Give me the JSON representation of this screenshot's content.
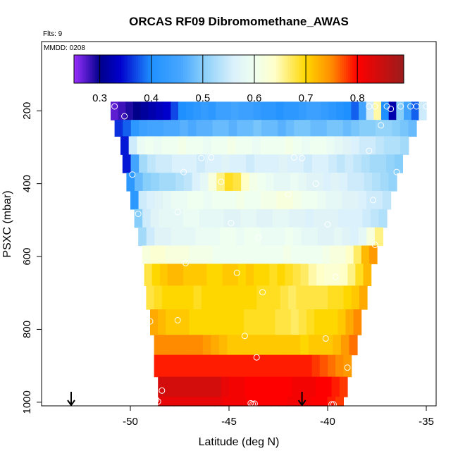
{
  "chart_data": {
    "type": "heatmap",
    "title": "ORCAS RF09 Dibromomethane_AWAS",
    "flights_note": "Flts: 9",
    "date_note": "MMDD: 0208",
    "xlabel": "Latitude (deg N)",
    "ylabel": "PSXC (mbar)",
    "xlim": [
      -54.5,
      -34.5
    ],
    "ylim": [
      1010,
      10
    ],
    "y_reversed": true,
    "x_ticks": [
      -50,
      -45,
      -40,
      -35
    ],
    "x_tick_labels": [
      "-50",
      "-45",
      "-40",
      "-35"
    ],
    "y_ticks": [
      200,
      400,
      600,
      800,
      1000
    ],
    "y_tick_labels": [
      "200",
      "400",
      "600",
      "800",
      "1000"
    ],
    "colorbar": {
      "range": [
        0.25,
        0.89
      ],
      "ticks": [
        0.3,
        0.4,
        0.5,
        0.6,
        0.7,
        0.8
      ],
      "tick_labels": [
        "0.3",
        "0.4",
        "0.5",
        "0.6",
        "0.7",
        "0.8"
      ],
      "stops": [
        [
          0.25,
          "#9b30ff"
        ],
        [
          0.3,
          "#00008b"
        ],
        [
          0.34,
          "#0000cd"
        ],
        [
          0.4,
          "#1e90ff"
        ],
        [
          0.46,
          "#4aa8ff"
        ],
        [
          0.5,
          "#87cefa"
        ],
        [
          0.56,
          "#dbf1fb"
        ],
        [
          0.6,
          "#effff0"
        ],
        [
          0.64,
          "#ffffc8"
        ],
        [
          0.7,
          "#ffd700"
        ],
        [
          0.75,
          "#ff8c00"
        ],
        [
          0.8,
          "#ff0000"
        ],
        [
          0.89,
          "#9b1c1c"
        ]
      ]
    },
    "grid": false,
    "legend": "none",
    "bands": [
      {
        "p0": 175,
        "p1": 225,
        "lat0": -51.0,
        "lat1": -35.0,
        "values": [
          0.27,
          0.28,
          0.29,
          0.3,
          0.31,
          0.32,
          0.33,
          0.34,
          0.37,
          0.4,
          0.41,
          0.42,
          0.43,
          0.42,
          0.44,
          0.44,
          0.45,
          0.44,
          0.44,
          0.43,
          0.42,
          0.42,
          0.41,
          0.42,
          0.42,
          0.43,
          0.44,
          0.44,
          0.43,
          0.42,
          0.41,
          0.4,
          0.38,
          0.45,
          0.55,
          0.65,
          0.4,
          0.32,
          0.5,
          0.45,
          0.38,
          0.55
        ]
      },
      {
        "p0": 225,
        "p1": 270,
        "lat0": -50.8,
        "lat1": -35.5,
        "values": [
          0.36,
          0.38,
          0.42,
          0.44,
          0.45,
          0.45,
          0.46,
          0.46,
          0.47,
          0.46,
          0.47,
          0.47,
          0.48,
          0.48,
          0.47,
          0.48,
          0.48,
          0.49,
          0.48,
          0.48,
          0.47,
          0.48,
          0.49,
          0.49,
          0.48,
          0.48,
          0.49,
          0.49,
          0.48,
          0.49,
          0.5,
          0.5,
          0.51,
          0.51,
          0.5,
          0.49,
          0.48
        ]
      },
      {
        "p0": 270,
        "p1": 320,
        "lat0": -50.5,
        "lat1": -35.9,
        "values": [
          0.35,
          0.55,
          0.59,
          0.6,
          0.59,
          0.6,
          0.6,
          0.61,
          0.6,
          0.6,
          0.59,
          0.6,
          0.6,
          0.61,
          0.6,
          0.6,
          0.59,
          0.6,
          0.6,
          0.6,
          0.61,
          0.6,
          0.59,
          0.6,
          0.6,
          0.59,
          0.58,
          0.57,
          0.56,
          0.55,
          0.55,
          0.54,
          0.53,
          0.53,
          0.52
        ]
      },
      {
        "p0": 320,
        "p1": 370,
        "lat0": -50.4,
        "lat1": -36.2,
        "values": [
          0.35,
          0.45,
          0.52,
          0.54,
          0.55,
          0.55,
          0.56,
          0.56,
          0.56,
          0.55,
          0.56,
          0.56,
          0.57,
          0.56,
          0.56,
          0.55,
          0.56,
          0.56,
          0.56,
          0.57,
          0.56,
          0.56,
          0.55,
          0.56,
          0.56,
          0.55,
          0.54,
          0.55,
          0.54,
          0.53,
          0.52,
          0.52,
          0.51,
          0.5
        ]
      },
      {
        "p0": 370,
        "p1": 420,
        "lat0": -50.2,
        "lat1": -36.5,
        "values": [
          0.42,
          0.48,
          0.5,
          0.51,
          0.52,
          0.52,
          0.53,
          0.54,
          0.56,
          0.58,
          0.62,
          0.66,
          0.69,
          0.68,
          0.64,
          0.61,
          0.6,
          0.59,
          0.58,
          0.58,
          0.59,
          0.58,
          0.57,
          0.57,
          0.56,
          0.57,
          0.56,
          0.55,
          0.55,
          0.54,
          0.53,
          0.52,
          0.51
        ]
      },
      {
        "p0": 420,
        "p1": 470,
        "lat0": -50.0,
        "lat1": -36.8,
        "values": [
          0.42,
          0.55,
          0.56,
          0.57,
          0.58,
          0.59,
          0.59,
          0.6,
          0.6,
          0.59,
          0.6,
          0.6,
          0.6,
          0.61,
          0.6,
          0.6,
          0.61,
          0.61,
          0.62,
          0.62,
          0.61,
          0.6,
          0.6,
          0.59,
          0.58,
          0.58,
          0.57,
          0.57,
          0.56,
          0.55,
          0.55,
          0.54
        ]
      },
      {
        "p0": 470,
        "p1": 520,
        "lat0": -49.8,
        "lat1": -37.0,
        "values": [
          0.5,
          0.55,
          0.57,
          0.58,
          0.58,
          0.58,
          0.59,
          0.59,
          0.58,
          0.58,
          0.58,
          0.57,
          0.57,
          0.58,
          0.58,
          0.57,
          0.57,
          0.58,
          0.58,
          0.57,
          0.57,
          0.56,
          0.57,
          0.57,
          0.57,
          0.56,
          0.56,
          0.56,
          0.55,
          0.54,
          0.53
        ]
      },
      {
        "p0": 520,
        "p1": 570,
        "lat0": -49.6,
        "lat1": -37.2,
        "values": [
          0.52,
          0.55,
          0.57,
          0.57,
          0.58,
          0.58,
          0.58,
          0.59,
          0.59,
          0.59,
          0.6,
          0.6,
          0.59,
          0.6,
          0.6,
          0.59,
          0.59,
          0.59,
          0.6,
          0.59,
          0.58,
          0.58,
          0.57,
          0.57,
          0.58,
          0.57,
          0.56,
          0.58,
          0.62,
          0.66
        ]
      },
      {
        "p0": 570,
        "p1": 620,
        "lat0": -49.4,
        "lat1": -37.5,
        "values": [
          0.62,
          0.63,
          0.63,
          0.62,
          0.62,
          0.62,
          0.61,
          0.61,
          0.61,
          0.6,
          0.6,
          0.6,
          0.6,
          0.6,
          0.6,
          0.6,
          0.6,
          0.6,
          0.61,
          0.6,
          0.6,
          0.6,
          0.6,
          0.61,
          0.62,
          0.62,
          0.64,
          0.67,
          0.72,
          0.74
        ]
      },
      {
        "p0": 620,
        "p1": 680,
        "lat0": -49.3,
        "lat1": -37.8,
        "values": [
          0.68,
          0.7,
          0.71,
          0.72,
          0.72,
          0.71,
          0.71,
          0.71,
          0.7,
          0.7,
          0.71,
          0.71,
          0.7,
          0.71,
          0.7,
          0.7,
          0.69,
          0.7,
          0.69,
          0.68,
          0.67,
          0.65,
          0.64,
          0.63,
          0.63,
          0.64,
          0.66,
          0.69,
          0.72
        ]
      },
      {
        "p0": 680,
        "p1": 745,
        "lat0": -49.2,
        "lat1": -38.0,
        "values": [
          0.68,
          0.69,
          0.7,
          0.7,
          0.7,
          0.7,
          0.69,
          0.7,
          0.7,
          0.7,
          0.7,
          0.7,
          0.7,
          0.7,
          0.69,
          0.69,
          0.69,
          0.68,
          0.67,
          0.68,
          0.68,
          0.68,
          0.68,
          0.69,
          0.69,
          0.7,
          0.71,
          0.73
        ]
      },
      {
        "p0": 745,
        "p1": 815,
        "lat0": -49.0,
        "lat1": -38.3,
        "values": [
          0.73,
          0.72,
          0.71,
          0.71,
          0.71,
          0.7,
          0.7,
          0.7,
          0.7,
          0.7,
          0.7,
          0.7,
          0.69,
          0.69,
          0.69,
          0.69,
          0.68,
          0.68,
          0.67,
          0.68,
          0.69,
          0.7,
          0.7,
          0.7,
          0.71,
          0.73,
          0.75
        ]
      },
      {
        "p0": 815,
        "p1": 870,
        "lat0": -48.8,
        "lat1": -38.5,
        "values": [
          0.75,
          0.75,
          0.75,
          0.75,
          0.75,
          0.75,
          0.74,
          0.73,
          0.72,
          0.71,
          0.71,
          0.71,
          0.71,
          0.71,
          0.71,
          0.71,
          0.71,
          0.71,
          0.7,
          0.71,
          0.71,
          0.71,
          0.72,
          0.74,
          0.76
        ]
      },
      {
        "p0": 870,
        "p1": 930,
        "lat0": -48.8,
        "lat1": -38.8,
        "values": [
          0.79,
          0.79,
          0.79,
          0.79,
          0.79,
          0.79,
          0.79,
          0.79,
          0.79,
          0.79,
          0.79,
          0.79,
          0.79,
          0.79,
          0.79,
          0.79,
          0.79,
          0.79,
          0.79,
          0.79,
          0.78,
          0.77,
          0.76,
          0.75,
          0.74
        ]
      },
      {
        "p0": 930,
        "p1": 985,
        "lat0": -48.6,
        "lat1": -39.0,
        "values": [
          0.84,
          0.84,
          0.84,
          0.84,
          0.84,
          0.84,
          0.84,
          0.84,
          0.82,
          0.81,
          0.81,
          0.8,
          0.8,
          0.8,
          0.8,
          0.8,
          0.8,
          0.81,
          0.81,
          0.81,
          0.8,
          0.8,
          0.79,
          0.78
        ]
      },
      {
        "p0": 985,
        "p1": 1010,
        "lat0": -48.6,
        "lat1": -39.2,
        "values": [
          0.82,
          0.82,
          0.82,
          0.82,
          0.82,
          0.82,
          0.82,
          0.82,
          0.81,
          0.81,
          0.81,
          0.8,
          0.8,
          0.8,
          0.8,
          0.8,
          0.81,
          0.81,
          0.81,
          0.8,
          0.8,
          0.79,
          0.78
        ]
      }
    ],
    "samples": [
      {
        "lat": -50.8,
        "p": 188
      },
      {
        "lat": -36.3,
        "p": 188
      },
      {
        "lat": -37.9,
        "p": 188
      },
      {
        "lat": -37.6,
        "p": 188
      },
      {
        "lat": -37.0,
        "p": 188
      },
      {
        "lat": -36.8,
        "p": 195
      },
      {
        "lat": -35.8,
        "p": 188
      },
      {
        "lat": -35.5,
        "p": 188
      },
      {
        "lat": -35.0,
        "p": 188
      },
      {
        "lat": -50.3,
        "p": 215
      },
      {
        "lat": -37.3,
        "p": 240
      },
      {
        "lat": -45.9,
        "p": 328
      },
      {
        "lat": -46.4,
        "p": 330
      },
      {
        "lat": -41.7,
        "p": 328
      },
      {
        "lat": -41.3,
        "p": 330
      },
      {
        "lat": -37.9,
        "p": 310
      },
      {
        "lat": -49.9,
        "p": 375
      },
      {
        "lat": -47.3,
        "p": 368
      },
      {
        "lat": -45.4,
        "p": 395
      },
      {
        "lat": -40.6,
        "p": 400
      },
      {
        "lat": -36.5,
        "p": 368
      },
      {
        "lat": -42.0,
        "p": 430
      },
      {
        "lat": -37.7,
        "p": 445
      },
      {
        "lat": -47.6,
        "p": 478
      },
      {
        "lat": -49.6,
        "p": 483
      },
      {
        "lat": -44.9,
        "p": 508
      },
      {
        "lat": -40.0,
        "p": 512
      },
      {
        "lat": -43.5,
        "p": 548
      },
      {
        "lat": -37.6,
        "p": 568
      },
      {
        "lat": -47.2,
        "p": 618
      },
      {
        "lat": -44.6,
        "p": 645
      },
      {
        "lat": -39.6,
        "p": 656
      },
      {
        "lat": -43.3,
        "p": 698
      },
      {
        "lat": -49.0,
        "p": 778
      },
      {
        "lat": -47.6,
        "p": 775
      },
      {
        "lat": -44.2,
        "p": 818
      },
      {
        "lat": -40.1,
        "p": 825
      },
      {
        "lat": -43.6,
        "p": 877
      },
      {
        "lat": -39.0,
        "p": 905
      },
      {
        "lat": -48.4,
        "p": 968
      },
      {
        "lat": -48.8,
        "p": 972
      },
      {
        "lat": -48.8,
        "p": 988
      },
      {
        "lat": -48.7,
        "p": 993
      },
      {
        "lat": -48.6,
        "p": 998
      },
      {
        "lat": -43.9,
        "p": 1003
      },
      {
        "lat": -43.8,
        "p": 1005
      },
      {
        "lat": -43.7,
        "p": 1004
      },
      {
        "lat": -39.8,
        "p": 1006
      },
      {
        "lat": -39.7,
        "p": 1006
      }
    ],
    "arrows": [
      {
        "lat": -53.0
      },
      {
        "lat": -41.3
      }
    ]
  }
}
